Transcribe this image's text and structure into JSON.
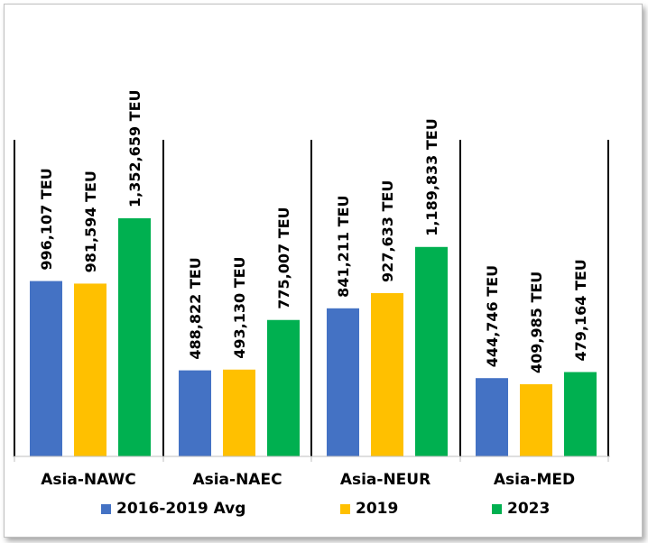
{
  "chart_data": {
    "type": "bar",
    "categories": [
      "Asia-NAWC",
      "Asia-NAEC",
      "Asia-NEUR",
      "Asia-MED"
    ],
    "series": [
      {
        "name": "2016-2019 Avg",
        "color": "#4472C4",
        "values": [
          996107,
          488822,
          841211,
          444746
        ],
        "labels": [
          "996,107 TEU",
          "488,822 TEU",
          "841,211 TEU",
          "444,746 TEU"
        ]
      },
      {
        "name": "2019",
        "color": "#FFC000",
        "values": [
          981594,
          493130,
          927633,
          409985
        ],
        "labels": [
          "981,594 TEU",
          "493,130 TEU",
          "927,633 TEU",
          "409,985 TEU"
        ]
      },
      {
        "name": "2023",
        "color": "#00B050",
        "values": [
          1352659,
          775007,
          1189833,
          479164
        ],
        "labels": [
          "1,352,659 TEU",
          "775,007 TEU",
          "1,189,833 TEU",
          "479,164 TEU"
        ]
      }
    ],
    "ylim": [
      0,
      1400000
    ],
    "legend_position": "bottom",
    "grid": false
  }
}
